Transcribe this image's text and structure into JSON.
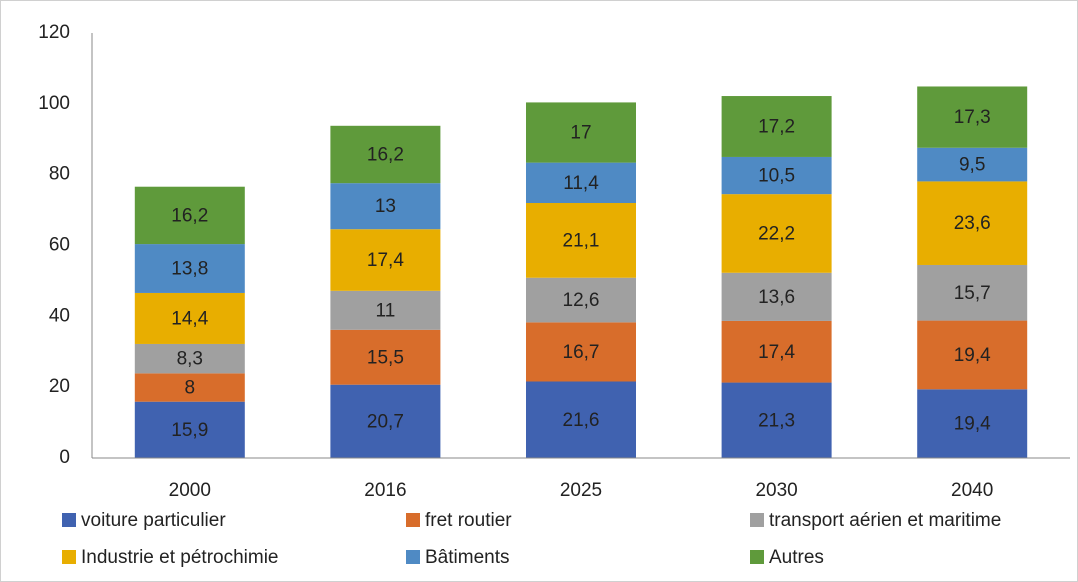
{
  "chart_data": {
    "type": "stacked_bar",
    "categories": [
      "2000",
      "2016",
      "2025",
      "2030",
      "2040"
    ],
    "series": [
      {
        "name": "voiture particulier",
        "color": "#4062b0",
        "values": [
          15.9,
          20.7,
          21.6,
          21.3,
          19.4
        ],
        "value_labels": [
          "15,9",
          "20,7",
          "21,6",
          "21,3",
          "19,4"
        ]
      },
      {
        "name": "fret routier",
        "color": "#d86d2b",
        "values": [
          8,
          15.5,
          16.7,
          17.4,
          19.4
        ],
        "value_labels": [
          "8",
          "15,5",
          "16,7",
          "17,4",
          "19,4"
        ]
      },
      {
        "name": "transport aérien et maritime",
        "color": "#a0a0a0",
        "values": [
          8.3,
          11,
          12.6,
          13.6,
          15.7
        ],
        "value_labels": [
          "8,3",
          "11",
          "12,6",
          "13,6",
          "15,7"
        ]
      },
      {
        "name": "Industrie et pétrochimie",
        "color": "#e8ae00",
        "values": [
          14.4,
          17.4,
          21.1,
          22.2,
          23.6
        ],
        "value_labels": [
          "14,4",
          "17,4",
          "21,1",
          "22,2",
          "23,6"
        ]
      },
      {
        "name": "Bâtiments",
        "color": "#4f8ac4",
        "values": [
          13.8,
          13,
          11.4,
          10.5,
          9.5
        ],
        "value_labels": [
          "13,8",
          "13",
          "11,4",
          "10,5",
          "9,5"
        ]
      },
      {
        "name": "Autres",
        "color": "#5f9a3b",
        "values": [
          16.2,
          16.2,
          17,
          17.2,
          17.3
        ],
        "value_labels": [
          "16,2",
          "16,2",
          "17",
          "17,2",
          "17,3"
        ]
      }
    ],
    "ylim": [
      0,
      120
    ],
    "yticks": [
      0,
      20,
      40,
      60,
      80,
      100,
      120
    ],
    "grid": false,
    "legend": "bottom"
  }
}
